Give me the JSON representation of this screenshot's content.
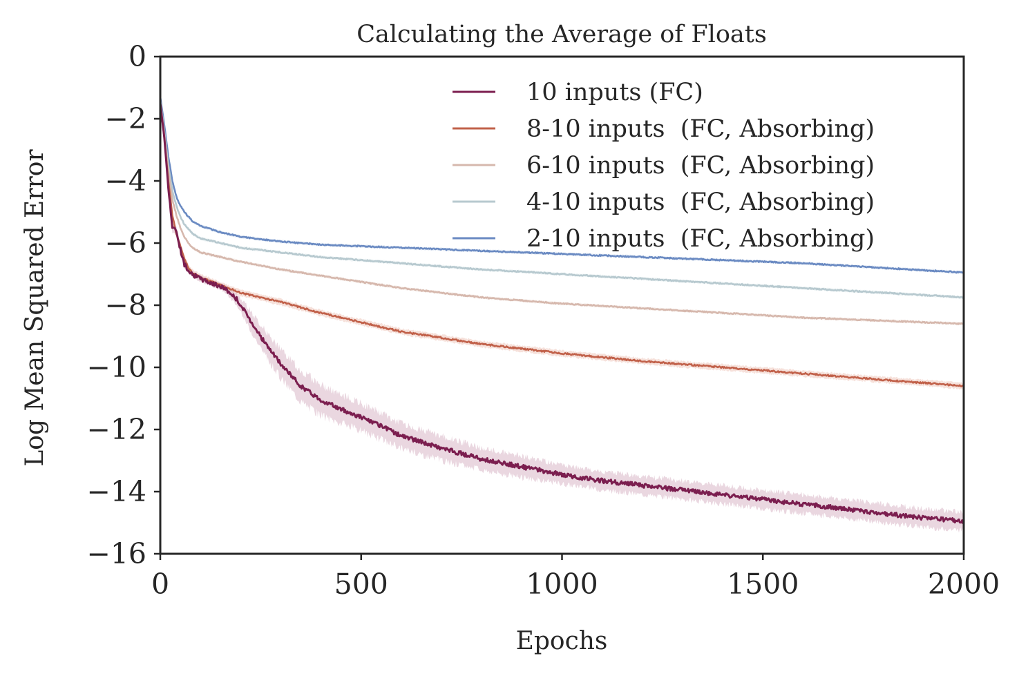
{
  "chart_data": {
    "type": "line",
    "title": "Calculating the Average of Floats",
    "xlabel": "Epochs",
    "ylabel": "Log Mean Squared Error",
    "xlim": [
      0,
      2000
    ],
    "ylim": [
      -16,
      0
    ],
    "xticks": [
      0,
      500,
      1000,
      1500,
      2000
    ],
    "xtick_labels": [
      "0",
      "500",
      "1000",
      "1500",
      "2000"
    ],
    "yticks": [
      0,
      -2,
      -4,
      -6,
      -8,
      -10,
      -12,
      -14,
      -16
    ],
    "ytick_labels": [
      "0",
      "−2",
      "−4",
      "−6",
      "−8",
      "−10",
      "−12",
      "−14",
      "−16"
    ],
    "grid": false,
    "legend_position": "top-right",
    "series": [
      {
        "name": "10 inputs (FC)",
        "color": "#7b1e4f",
        "band_color": "#d9b6c6",
        "x": [
          0,
          10,
          20,
          30,
          40,
          50,
          60,
          70,
          80,
          100,
          130,
          160,
          190,
          220,
          260,
          300,
          350,
          400,
          450,
          500,
          600,
          700,
          800,
          900,
          1000,
          1100,
          1200,
          1300,
          1400,
          1500,
          1600,
          1700,
          1800,
          1900,
          2000
        ],
        "y": [
          -1.5,
          -2.6,
          -4.2,
          -5.5,
          -5.6,
          -6.2,
          -6.7,
          -6.85,
          -7.0,
          -7.15,
          -7.3,
          -7.45,
          -7.8,
          -8.4,
          -9.2,
          -9.9,
          -10.6,
          -11.05,
          -11.35,
          -11.6,
          -12.2,
          -12.6,
          -12.95,
          -13.2,
          -13.45,
          -13.65,
          -13.8,
          -13.95,
          -14.1,
          -14.25,
          -14.4,
          -14.55,
          -14.7,
          -14.85,
          -14.95
        ],
        "band": [
          0,
          0,
          0.1,
          0.15,
          0.15,
          0.15,
          0.12,
          0.1,
          0.1,
          0.1,
          0.1,
          0.12,
          0.2,
          0.3,
          0.4,
          0.45,
          0.5,
          0.5,
          0.45,
          0.45,
          0.4,
          0.4,
          0.35,
          0.35,
          0.3,
          0.3,
          0.3,
          0.3,
          0.3,
          0.3,
          0.3,
          0.3,
          0.3,
          0.3,
          0.3
        ],
        "noise": 0.07
      },
      {
        "name": "8-10 inputs  (FC, Absorbing)",
        "color": "#c1614a",
        "band_color": "#efc8bd",
        "x": [
          0,
          10,
          20,
          30,
          40,
          50,
          60,
          70,
          80,
          100,
          130,
          160,
          200,
          300,
          400,
          500,
          600,
          700,
          800,
          900,
          1000,
          1200,
          1400,
          1600,
          1800,
          2000
        ],
        "y": [
          -1.5,
          -2.6,
          -4.0,
          -5.1,
          -5.7,
          -6.1,
          -6.5,
          -6.8,
          -6.95,
          -7.1,
          -7.25,
          -7.4,
          -7.6,
          -7.9,
          -8.25,
          -8.55,
          -8.85,
          -9.05,
          -9.25,
          -9.4,
          -9.55,
          -9.8,
          -10.0,
          -10.2,
          -10.4,
          -10.6
        ],
        "band": [
          0,
          0.05,
          0.08,
          0.1,
          0.1,
          0.1,
          0.1,
          0.1,
          0.1,
          0.1,
          0.1,
          0.1,
          0.1,
          0.1,
          0.1,
          0.1,
          0.1,
          0.1,
          0.1,
          0.1,
          0.1,
          0.1,
          0.1,
          0.1,
          0.1,
          0.1
        ],
        "noise": 0.025
      },
      {
        "name": "6-10 inputs  (FC, Absorbing)",
        "color": "#d6b8ad",
        "band_color": "#f3e7e2",
        "x": [
          0,
          10,
          20,
          30,
          40,
          50,
          60,
          70,
          80,
          100,
          150,
          200,
          300,
          400,
          500,
          600,
          700,
          800,
          900,
          1000,
          1200,
          1400,
          1600,
          1800,
          2000
        ],
        "y": [
          -1.5,
          -2.5,
          -3.7,
          -4.6,
          -5.1,
          -5.5,
          -5.8,
          -6.0,
          -6.15,
          -6.3,
          -6.45,
          -6.6,
          -6.85,
          -7.05,
          -7.25,
          -7.45,
          -7.6,
          -7.75,
          -7.85,
          -7.95,
          -8.1,
          -8.25,
          -8.4,
          -8.5,
          -8.6
        ],
        "band": [
          0,
          0.04,
          0.05,
          0.05,
          0.05,
          0.05,
          0.05,
          0.05,
          0.05,
          0.05,
          0.05,
          0.05,
          0.05,
          0.05,
          0.05,
          0.05,
          0.05,
          0.05,
          0.05,
          0.05,
          0.05,
          0.05,
          0.05,
          0.05,
          0.05
        ],
        "noise": 0.02
      },
      {
        "name": "4-10 inputs  (FC, Absorbing)",
        "color": "#b7c9cf",
        "band_color": "#e4ecef",
        "x": [
          0,
          10,
          20,
          30,
          40,
          50,
          60,
          70,
          80,
          100,
          150,
          200,
          300,
          400,
          500,
          600,
          700,
          800,
          900,
          1000,
          1200,
          1400,
          1600,
          1800,
          2000
        ],
        "y": [
          -1.4,
          -2.4,
          -3.5,
          -4.3,
          -4.8,
          -5.15,
          -5.4,
          -5.55,
          -5.7,
          -5.85,
          -6.0,
          -6.15,
          -6.3,
          -6.45,
          -6.55,
          -6.65,
          -6.75,
          -6.85,
          -6.92,
          -7.0,
          -7.15,
          -7.3,
          -7.45,
          -7.6,
          -7.75
        ],
        "band": [
          0,
          0.04,
          0.05,
          0.05,
          0.05,
          0.05,
          0.05,
          0.05,
          0.05,
          0.05,
          0.05,
          0.05,
          0.05,
          0.05,
          0.05,
          0.05,
          0.05,
          0.05,
          0.05,
          0.05,
          0.05,
          0.05,
          0.05,
          0.05,
          0.05
        ],
        "noise": 0.02
      },
      {
        "name": "2-10 inputs  (FC, Absorbing)",
        "color": "#6a8ac2",
        "band_color": "#d6e0ef",
        "x": [
          0,
          10,
          20,
          30,
          40,
          50,
          60,
          70,
          80,
          100,
          150,
          200,
          300,
          400,
          500,
          600,
          700,
          800,
          900,
          1000,
          1200,
          1400,
          1600,
          1800,
          2000
        ],
        "y": [
          -1.3,
          -2.2,
          -3.2,
          -4.0,
          -4.5,
          -4.8,
          -5.0,
          -5.15,
          -5.3,
          -5.45,
          -5.65,
          -5.8,
          -5.95,
          -6.05,
          -6.1,
          -6.15,
          -6.2,
          -6.25,
          -6.3,
          -6.35,
          -6.45,
          -6.55,
          -6.65,
          -6.8,
          -6.95
        ],
        "band": [
          0,
          0.04,
          0.05,
          0.05,
          0.05,
          0.05,
          0.05,
          0.05,
          0.05,
          0.05,
          0.05,
          0.05,
          0.05,
          0.05,
          0.05,
          0.05,
          0.05,
          0.05,
          0.05,
          0.05,
          0.05,
          0.05,
          0.05,
          0.05,
          0.05
        ],
        "noise": 0.02
      }
    ]
  }
}
